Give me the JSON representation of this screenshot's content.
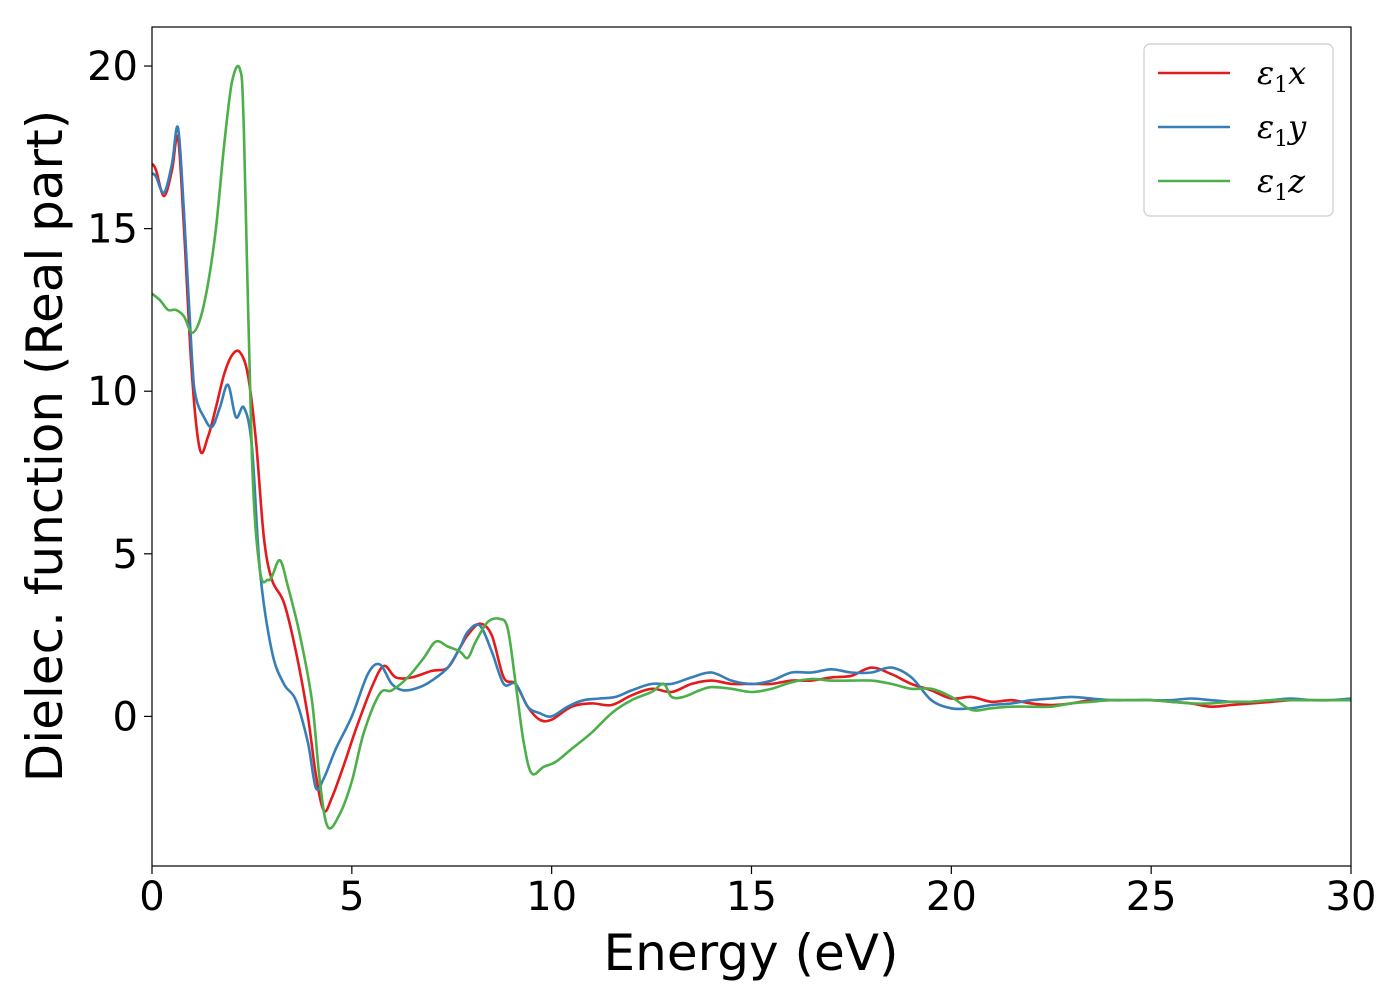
{
  "chart_data": {
    "type": "line",
    "title": "",
    "xlabel": "Energy (eV)",
    "ylabel": "Dielec. function (Real part)",
    "xlim": [
      0,
      30
    ],
    "ylim": [
      -4.6,
      21.2
    ],
    "xticks": [
      0,
      5,
      10,
      15,
      20,
      25,
      30
    ],
    "yticks": [
      0,
      5,
      10,
      15,
      20
    ],
    "grid": false,
    "legend": "top-right",
    "series": [
      {
        "name": "ε1x",
        "legend_sym": "ε",
        "legend_sub": "1",
        "legend_var": "x",
        "color": "#e41a1c",
        "x": [
          0,
          0.1,
          0.3,
          0.5,
          0.65,
          0.8,
          1.0,
          1.2,
          1.4,
          1.6,
          1.8,
          2.0,
          2.2,
          2.4,
          2.6,
          2.8,
          3.0,
          3.3,
          3.6,
          3.9,
          4.1,
          4.3,
          4.5,
          4.8,
          5.1,
          5.5,
          5.8,
          6.1,
          6.5,
          7.0,
          7.4,
          7.7,
          7.9,
          8.2,
          8.5,
          8.8,
          9.1,
          9.4,
          9.7,
          10.0,
          10.5,
          11.0,
          11.5,
          12.0,
          12.5,
          13.0,
          13.5,
          14.0,
          14.5,
          15.0,
          15.5,
          16.0,
          16.5,
          17.0,
          17.5,
          18.0,
          18.5,
          19.0,
          19.5,
          20.0,
          20.5,
          21.0,
          21.5,
          22.0,
          22.5,
          23.0,
          23.5,
          24.0,
          24.5,
          25.0,
          25.5,
          26.0,
          26.5,
          27.0,
          27.5,
          28.0,
          28.5,
          29.0,
          29.5,
          30.0
        ],
        "y": [
          17.0,
          16.8,
          16.0,
          16.8,
          17.8,
          15.0,
          10.5,
          8.2,
          8.6,
          9.5,
          10.5,
          11.1,
          11.2,
          10.5,
          8.5,
          5.5,
          4.2,
          3.5,
          2.0,
          0.0,
          -1.8,
          -2.9,
          -2.5,
          -1.5,
          -0.4,
          0.9,
          1.55,
          1.2,
          1.2,
          1.4,
          1.5,
          2.1,
          2.5,
          2.85,
          2.5,
          1.2,
          1.0,
          0.3,
          -0.1,
          -0.1,
          0.3,
          0.4,
          0.35,
          0.65,
          0.85,
          0.75,
          1.0,
          1.1,
          1.0,
          1.0,
          1.0,
          1.1,
          1.1,
          1.2,
          1.25,
          1.5,
          1.3,
          1.0,
          0.8,
          0.55,
          0.6,
          0.45,
          0.5,
          0.4,
          0.35,
          0.4,
          0.5,
          0.5,
          0.5,
          0.5,
          0.45,
          0.4,
          0.3,
          0.35,
          0.4,
          0.45,
          0.5,
          0.5,
          0.5,
          0.5
        ]
      },
      {
        "name": "ε1y",
        "legend_sym": "ε",
        "legend_sub": "1",
        "legend_var": "y",
        "color": "#377eb8",
        "x": [
          0,
          0.1,
          0.3,
          0.5,
          0.65,
          0.8,
          1.0,
          1.1,
          1.3,
          1.5,
          1.7,
          1.9,
          2.1,
          2.3,
          2.5,
          2.7,
          3.0,
          3.3,
          3.6,
          3.9,
          4.1,
          4.3,
          4.6,
          5.0,
          5.4,
          5.7,
          6.0,
          6.3,
          6.7,
          7.0,
          7.4,
          7.7,
          7.9,
          8.2,
          8.5,
          8.8,
          9.1,
          9.4,
          9.7,
          10.0,
          10.4,
          10.8,
          11.2,
          11.6,
          12.0,
          12.5,
          13.0,
          13.5,
          14.0,
          14.5,
          15.0,
          15.5,
          16.0,
          16.5,
          17.0,
          17.5,
          18.0,
          18.5,
          19.0,
          19.5,
          20.0,
          20.5,
          21.0,
          21.5,
          22.0,
          22.5,
          23.0,
          23.5,
          24.0,
          24.5,
          25.0,
          25.5,
          26.0,
          26.5,
          27.0,
          27.5,
          28.0,
          28.5,
          29.0,
          29.5,
          30.0
        ],
        "y": [
          16.7,
          16.6,
          16.1,
          17.0,
          18.1,
          15.5,
          11.0,
          9.8,
          9.2,
          8.9,
          9.5,
          10.2,
          9.2,
          9.5,
          8.3,
          4.5,
          2.0,
          1.0,
          0.5,
          -0.8,
          -2.2,
          -1.9,
          -1.0,
          0.0,
          1.3,
          1.6,
          1.0,
          0.8,
          0.9,
          1.1,
          1.5,
          2.1,
          2.6,
          2.8,
          2.0,
          1.0,
          1.0,
          0.3,
          0.1,
          0.0,
          0.3,
          0.5,
          0.55,
          0.6,
          0.8,
          1.0,
          1.0,
          1.2,
          1.35,
          1.1,
          1.0,
          1.1,
          1.35,
          1.35,
          1.45,
          1.35,
          1.35,
          1.5,
          1.2,
          0.5,
          0.25,
          0.25,
          0.35,
          0.4,
          0.5,
          0.55,
          0.6,
          0.55,
          0.5,
          0.5,
          0.5,
          0.5,
          0.55,
          0.5,
          0.45,
          0.45,
          0.5,
          0.55,
          0.5,
          0.5,
          0.55
        ]
      },
      {
        "name": "ε1z",
        "legend_sym": "ε",
        "legend_sub": "1",
        "legend_var": "z",
        "color": "#4daf4a",
        "x": [
          0,
          0.2,
          0.4,
          0.6,
          0.8,
          1.0,
          1.2,
          1.4,
          1.6,
          1.8,
          2.0,
          2.2,
          2.3,
          2.5,
          2.7,
          2.9,
          3.0,
          3.2,
          3.4,
          3.7,
          4.0,
          4.2,
          4.4,
          4.7,
          5.0,
          5.3,
          5.7,
          6.0,
          6.4,
          6.8,
          7.1,
          7.4,
          7.7,
          7.9,
          8.1,
          8.4,
          8.7,
          8.9,
          9.1,
          9.3,
          9.5,
          9.8,
          10.1,
          10.5,
          11.0,
          11.5,
          12.0,
          12.5,
          12.8,
          13.0,
          13.3,
          13.7,
          14.0,
          14.5,
          15.0,
          15.5,
          16.0,
          16.5,
          17.0,
          17.5,
          18.0,
          18.5,
          19.0,
          19.5,
          20.0,
          20.5,
          21.0,
          21.5,
          22.0,
          22.5,
          23.0,
          23.5,
          24.0,
          24.5,
          25.0,
          25.5,
          26.0,
          26.5,
          27.0,
          27.5,
          28.0,
          28.5,
          29.0,
          29.5,
          30.0
        ],
        "y": [
          13.0,
          12.8,
          12.5,
          12.5,
          12.3,
          11.8,
          12.2,
          13.3,
          15.0,
          17.5,
          19.5,
          19.9,
          18.0,
          8.0,
          4.5,
          4.2,
          4.3,
          4.8,
          4.0,
          2.5,
          0.5,
          -2.0,
          -3.4,
          -3.0,
          -2.0,
          -0.5,
          0.7,
          0.8,
          1.2,
          1.8,
          2.3,
          2.15,
          2.0,
          1.8,
          2.3,
          2.9,
          3.0,
          2.7,
          1.0,
          -0.8,
          -1.75,
          -1.55,
          -1.4,
          -1.0,
          -0.5,
          0.1,
          0.5,
          0.75,
          1.0,
          0.6,
          0.6,
          0.8,
          0.9,
          0.85,
          0.75,
          0.85,
          1.05,
          1.15,
          1.1,
          1.1,
          1.1,
          1.0,
          0.85,
          0.85,
          0.6,
          0.2,
          0.25,
          0.3,
          0.3,
          0.3,
          0.4,
          0.45,
          0.5,
          0.5,
          0.5,
          0.45,
          0.4,
          0.4,
          0.45,
          0.45,
          0.5,
          0.5,
          0.5,
          0.5,
          0.5
        ]
      }
    ]
  }
}
